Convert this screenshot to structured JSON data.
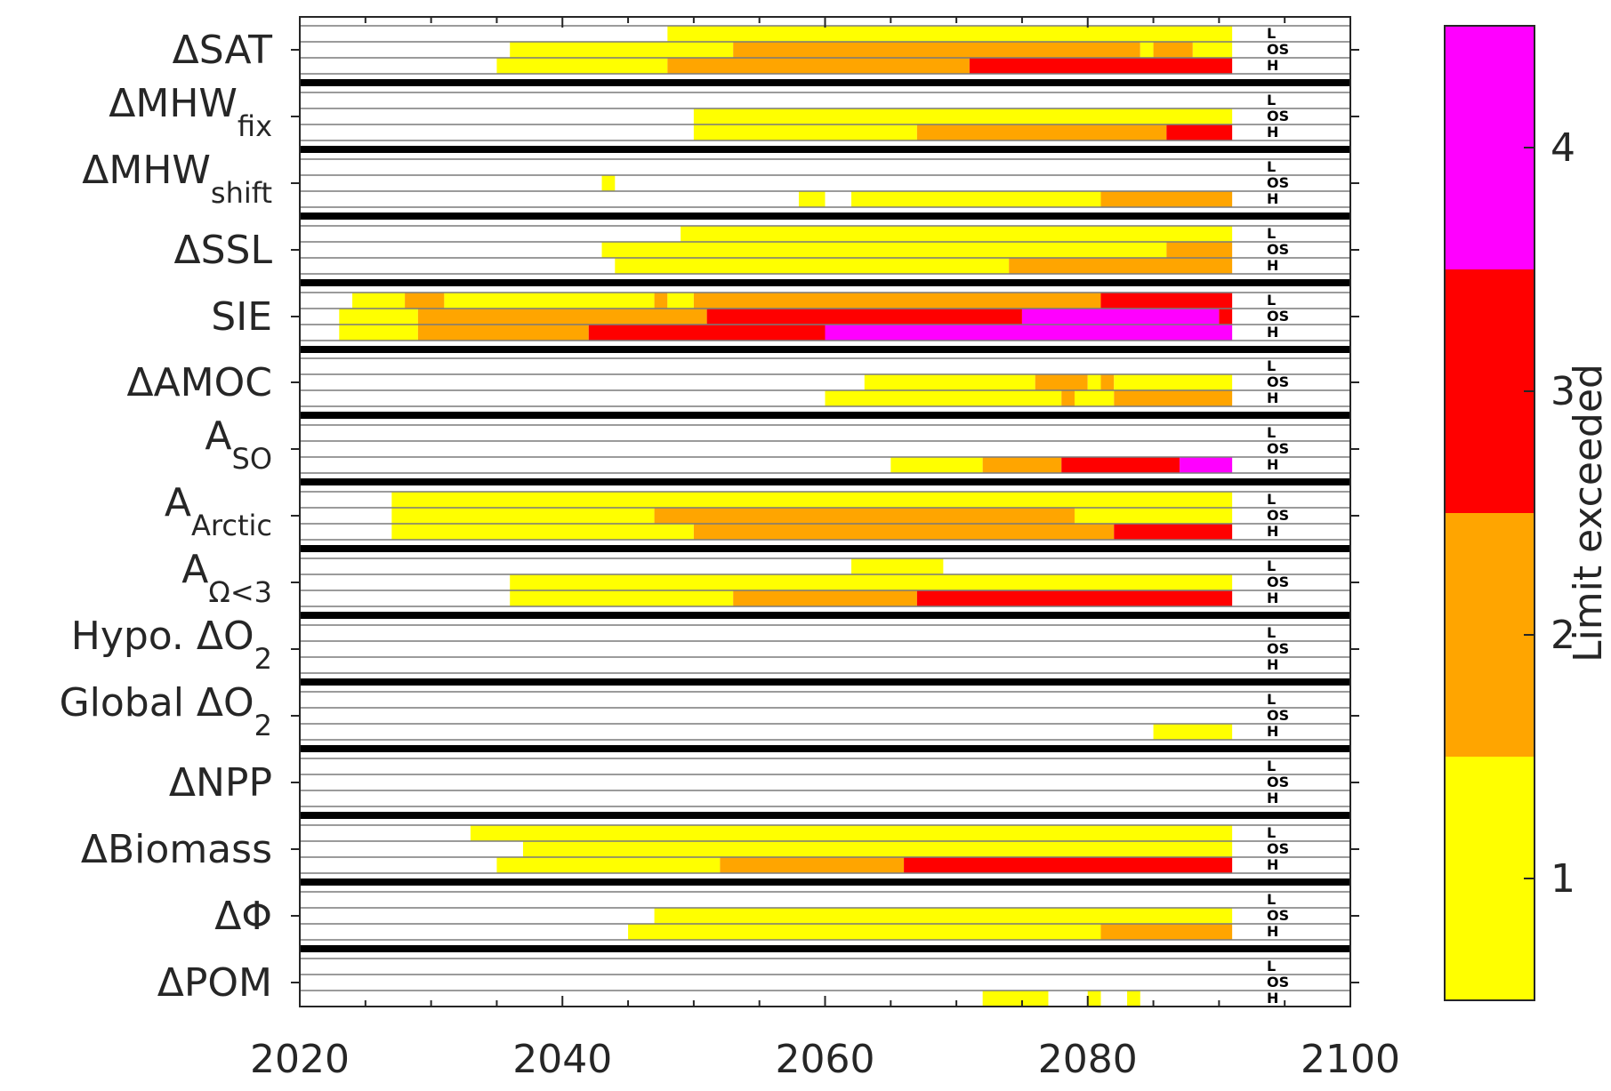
{
  "chart_data": {
    "type": "heatmap",
    "title": "",
    "xlabel": "",
    "ylabel": "",
    "xlim": [
      2020,
      2100
    ],
    "xticks": [
      "2020",
      "2040",
      "2060",
      "2080",
      "2100"
    ],
    "scenarios": [
      "L",
      "OS",
      "H"
    ],
    "colorbar": {
      "label": "Limit exceeded",
      "range": [
        0.5,
        4.5
      ],
      "ticks": [
        "1",
        "2",
        "3",
        "4"
      ],
      "levels": [
        {
          "value": 1,
          "color": "#FFFF00"
        },
        {
          "value": 2,
          "color": "#FFA500"
        },
        {
          "value": 3,
          "color": "#FF0000"
        },
        {
          "value": 4,
          "color": "#FF00FF"
        }
      ]
    },
    "rows": [
      {
        "label": "ΔSAT",
        "sub": "",
        "scenarios": [
          [
            [
              2048,
              2091,
              1
            ]
          ],
          [
            [
              2036,
              2053,
              1
            ],
            [
              2053,
              2084,
              2
            ],
            [
              2084,
              2085,
              1
            ],
            [
              2085,
              2088,
              2
            ],
            [
              2088,
              2091,
              1
            ]
          ],
          [
            [
              2035,
              2048,
              1
            ],
            [
              2048,
              2071,
              2
            ],
            [
              2071,
              2091,
              3
            ]
          ]
        ]
      },
      {
        "label": "ΔMHW",
        "sub": "fix",
        "scenarios": [
          [],
          [
            [
              2050,
              2091,
              1
            ]
          ],
          [
            [
              2050,
              2067,
              1
            ],
            [
              2067,
              2086,
              2
            ],
            [
              2086,
              2091,
              3
            ]
          ]
        ]
      },
      {
        "label": "ΔMHW",
        "sub": "shift",
        "scenarios": [
          [],
          [
            [
              2043,
              2044,
              1
            ]
          ],
          [
            [
              2058,
              2060,
              1
            ],
            [
              2062,
              2081,
              1
            ],
            [
              2081,
              2091,
              2
            ]
          ]
        ]
      },
      {
        "label": "ΔSSL",
        "sub": "",
        "scenarios": [
          [
            [
              2049,
              2091,
              1
            ]
          ],
          [
            [
              2043,
              2086,
              1
            ],
            [
              2086,
              2091,
              2
            ]
          ],
          [
            [
              2044,
              2074,
              1
            ],
            [
              2074,
              2091,
              2
            ]
          ]
        ]
      },
      {
        "label": "SIE",
        "sub": "",
        "scenarios": [
          [
            [
              2024,
              2028,
              1
            ],
            [
              2028,
              2031,
              2
            ],
            [
              2031,
              2047,
              1
            ],
            [
              2047,
              2048,
              2
            ],
            [
              2048,
              2050,
              1
            ],
            [
              2050,
              2081,
              2
            ],
            [
              2081,
              2091,
              3
            ]
          ],
          [
            [
              2023,
              2029,
              1
            ],
            [
              2029,
              2051,
              2
            ],
            [
              2051,
              2075,
              3
            ],
            [
              2075,
              2090,
              4
            ],
            [
              2090,
              2091,
              3
            ]
          ],
          [
            [
              2023,
              2029,
              1
            ],
            [
              2029,
              2042,
              2
            ],
            [
              2042,
              2060,
              3
            ],
            [
              2060,
              2091,
              4
            ]
          ]
        ]
      },
      {
        "label": "ΔAMOC",
        "sub": "",
        "scenarios": [
          [],
          [
            [
              2063,
              2076,
              1
            ],
            [
              2076,
              2080,
              2
            ],
            [
              2080,
              2081,
              1
            ],
            [
              2081,
              2082,
              2
            ],
            [
              2082,
              2091,
              1
            ]
          ],
          [
            [
              2060,
              2078,
              1
            ],
            [
              2078,
              2079,
              2
            ],
            [
              2079,
              2082,
              1
            ],
            [
              2082,
              2091,
              2
            ]
          ]
        ]
      },
      {
        "label": "A",
        "sub": "SO",
        "scenarios": [
          [],
          [],
          [
            [
              2065,
              2072,
              1
            ],
            [
              2072,
              2078,
              2
            ],
            [
              2078,
              2087,
              3
            ],
            [
              2087,
              2091,
              4
            ]
          ]
        ]
      },
      {
        "label": "A",
        "sub": "Arctic",
        "scenarios": [
          [
            [
              2027,
              2091,
              1
            ]
          ],
          [
            [
              2027,
              2047,
              1
            ],
            [
              2047,
              2079,
              2
            ],
            [
              2079,
              2091,
              1
            ]
          ],
          [
            [
              2027,
              2050,
              1
            ],
            [
              2050,
              2082,
              2
            ],
            [
              2082,
              2091,
              3
            ]
          ]
        ]
      },
      {
        "label": "A",
        "sub": "Ω<3",
        "scenarios": [
          [
            [
              2062,
              2069,
              1
            ]
          ],
          [
            [
              2036,
              2091,
              1
            ]
          ],
          [
            [
              2036,
              2053,
              1
            ],
            [
              2053,
              2067,
              2
            ],
            [
              2067,
              2091,
              3
            ]
          ]
        ]
      },
      {
        "label": "Hypo. ΔO",
        "sub": "2",
        "scenarios": [
          [],
          [],
          []
        ]
      },
      {
        "label": "Global ΔO",
        "sub": "2",
        "scenarios": [
          [],
          [],
          [
            [
              2085,
              2091,
              1
            ]
          ]
        ]
      },
      {
        "label": "ΔNPP",
        "sub": "",
        "scenarios": [
          [],
          [],
          []
        ]
      },
      {
        "label": "ΔBiomass",
        "sub": "",
        "scenarios": [
          [
            [
              2033,
              2091,
              1
            ]
          ],
          [
            [
              2037,
              2091,
              1
            ]
          ],
          [
            [
              2035,
              2052,
              1
            ],
            [
              2052,
              2066,
              2
            ],
            [
              2066,
              2091,
              3
            ]
          ]
        ]
      },
      {
        "label": "ΔΦ",
        "sub": "",
        "scenarios": [
          [],
          [
            [
              2047,
              2091,
              1
            ]
          ],
          [
            [
              2045,
              2081,
              1
            ],
            [
              2081,
              2091,
              2
            ]
          ]
        ]
      },
      {
        "label": "ΔPOM",
        "sub": "",
        "scenarios": [
          [],
          [],
          [
            [
              2072,
              2077,
              1
            ],
            [
              2080,
              2081,
              1
            ],
            [
              2083,
              2084,
              1
            ]
          ]
        ]
      }
    ]
  }
}
